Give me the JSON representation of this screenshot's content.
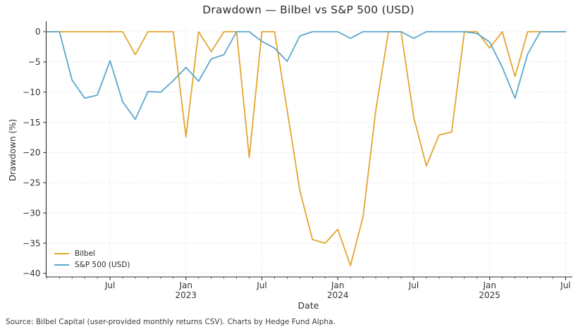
{
  "chart_data": {
    "type": "line",
    "title": "Drawdown — Bilbel vs S&P 500 (USD)",
    "xlabel": "Date",
    "ylabel": "Drawdown (%)",
    "grid": true,
    "legend_position": "lower left",
    "ylim": [
      -40.6,
      1.8
    ],
    "y_ticks": [
      0,
      -5,
      -10,
      -15,
      -20,
      -25,
      -30,
      -35,
      -40
    ],
    "y_tick_labels": [
      "0",
      "−5",
      "−10",
      "−15",
      "−20",
      "−25",
      "−30",
      "−35",
      "−40"
    ],
    "x_months": [
      "Feb 2022",
      "Mar 2022",
      "Apr 2022",
      "May 2022",
      "Jun 2022",
      "Jul 2022",
      "Aug 2022",
      "Sep 2022",
      "Oct 2022",
      "Nov 2022",
      "Dec 2022",
      "Jan 2023",
      "Feb 2023",
      "Mar 2023",
      "Apr 2023",
      "May 2023",
      "Jun 2023",
      "Jul 2023",
      "Aug 2023",
      "Sep 2023",
      "Oct 2023",
      "Nov 2023",
      "Dec 2023",
      "Jan 2024",
      "Feb 2024",
      "Mar 2024",
      "Apr 2024",
      "May 2024",
      "Jun 2024",
      "Jul 2024",
      "Aug 2024",
      "Sep 2024",
      "Oct 2024",
      "Nov 2024",
      "Dec 2024",
      "Jan 2025",
      "Feb 2025",
      "Mar 2025",
      "Apr 2025",
      "May 2025",
      "Jun 2025",
      "Jul 2025"
    ],
    "x_major_ticks": [
      {
        "index": 5,
        "label": "Jul",
        "year": ""
      },
      {
        "index": 11,
        "label": "Jan",
        "year": "2023"
      },
      {
        "index": 17,
        "label": "Jul",
        "year": ""
      },
      {
        "index": 23,
        "label": "Jan",
        "year": "2024"
      },
      {
        "index": 29,
        "label": "Jul",
        "year": ""
      },
      {
        "index": 35,
        "label": "Jan",
        "year": "2025"
      },
      {
        "index": 41,
        "label": "Jul",
        "year": ""
      }
    ],
    "x_minor_ticks_monthly": true,
    "series": [
      {
        "name": "Bilbel",
        "color": "#E3A62F",
        "values": [
          0,
          0,
          0,
          0,
          0,
          0,
          0,
          -3.8,
          0,
          0,
          0,
          -17.4,
          0,
          -3.3,
          0,
          0,
          -20.8,
          0,
          0,
          -13.0,
          -26.3,
          -34.4,
          -35.0,
          -32.7,
          -38.7,
          -30.6,
          -13.0,
          0,
          0,
          -14.2,
          -22.2,
          -17.1,
          -16.6,
          0,
          0,
          -2.7,
          0,
          -7.4,
          0,
          0,
          0,
          0
        ]
      },
      {
        "name": "S&P 500 (USD)",
        "color": "#5BA8CE",
        "values": [
          0,
          0,
          -8.0,
          -11.0,
          -10.5,
          -4.8,
          -11.6,
          -14.5,
          -9.9,
          -10.0,
          -8.1,
          -5.9,
          -8.2,
          -4.5,
          -3.8,
          0,
          0,
          -1.6,
          -2.7,
          -4.9,
          -0.7,
          0,
          0,
          0,
          -1.1,
          0,
          0,
          0,
          0,
          -1.1,
          0,
          0,
          0,
          0,
          -0.3,
          -1.7,
          -5.9,
          -11.0,
          -3.7,
          0,
          0,
          0
        ]
      }
    ],
    "axis_color": "#2e2e2e",
    "grid_color": "#d4d4d4"
  },
  "footer": {
    "text": "Source: Bilbel Capital (user-provided monthly returns CSV). Charts by Hedge Fund Alpha."
  }
}
